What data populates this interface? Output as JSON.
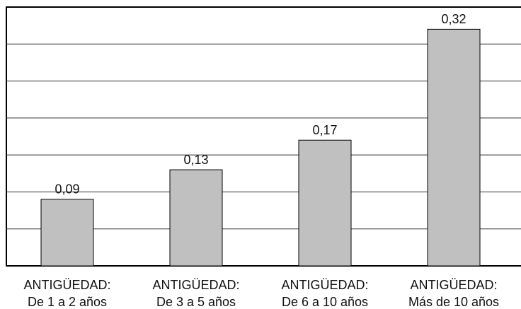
{
  "chart_data": {
    "type": "bar",
    "categories": [
      [
        "ANTIGÜEDAD:",
        "De 1 a 2 años"
      ],
      [
        "ANTIGÜEDAD:",
        "De 3 a 5 años"
      ],
      [
        "ANTIGÜEDAD:",
        "De 6 a 10 años"
      ],
      [
        "ANTIGÜEDAD:",
        "Más de 10 años"
      ]
    ],
    "values": [
      0.09,
      0.13,
      0.17,
      0.32
    ],
    "value_labels": [
      "0,09",
      "0,13",
      "0,17",
      "0,32"
    ],
    "color": "#c0c0c0",
    "ylim": [
      0,
      0.35
    ],
    "yticks": [
      0.05,
      0.1,
      0.15,
      0.2,
      0.25,
      0.3
    ],
    "grid": true
  }
}
